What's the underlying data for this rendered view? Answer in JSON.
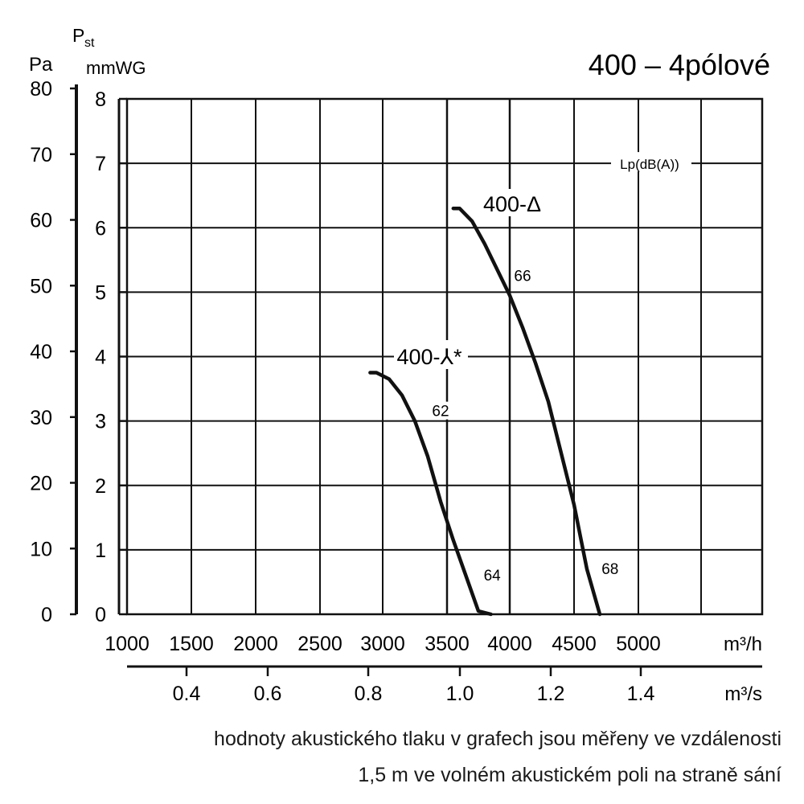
{
  "chart_data": {
    "type": "line",
    "title": "400 – 4pólové",
    "y_axis_left": {
      "label": "Pa",
      "ticks": [
        0,
        10,
        20,
        30,
        40,
        50,
        60,
        70,
        80
      ],
      "ylim": [
        0,
        80
      ]
    },
    "y_axis_inner": {
      "label_main": "P",
      "label_sub": "st",
      "unit": "mmWG",
      "ticks": [
        0,
        1,
        2,
        3,
        4,
        5,
        6,
        7,
        8
      ],
      "ylim": [
        0,
        8
      ]
    },
    "x_axis_top": {
      "unit": "m³/h",
      "ticks": [
        "1000",
        "1500",
        "2000",
        "2500",
        "3000",
        "3500",
        "4000",
        "4500",
        "5000"
      ]
    },
    "x_axis_bottom": {
      "unit": "m³/s",
      "ticks": [
        "0.4",
        "0.6",
        "0.8",
        "1.0",
        "1.2",
        "1.4"
      ]
    },
    "grid": true,
    "legend_text": "Lp(dB(A))",
    "series": [
      {
        "name": "400-Δ",
        "points": [
          [
            3550,
            6.3
          ],
          [
            3600,
            6.3
          ],
          [
            3700,
            6.1
          ],
          [
            3800,
            5.75
          ],
          [
            3900,
            5.35
          ],
          [
            4000,
            4.95
          ],
          [
            4100,
            4.45
          ],
          [
            4200,
            3.9
          ],
          [
            4300,
            3.3
          ],
          [
            4400,
            2.5
          ],
          [
            4500,
            1.7
          ],
          [
            4550,
            1.2
          ],
          [
            4600,
            0.7
          ],
          [
            4700,
            0.0
          ]
        ],
        "sound_labels": [
          {
            "text": "66",
            "x": 4100,
            "y": 5.2
          },
          {
            "text": "68",
            "x": 4780,
            "y": 0.65
          }
        ]
      },
      {
        "name": "400-⅄*",
        "points": [
          [
            2900,
            3.75
          ],
          [
            2950,
            3.75
          ],
          [
            3050,
            3.65
          ],
          [
            3150,
            3.4
          ],
          [
            3250,
            3.0
          ],
          [
            3350,
            2.45
          ],
          [
            3450,
            1.75
          ],
          [
            3550,
            1.15
          ],
          [
            3650,
            0.6
          ],
          [
            3750,
            0.05
          ],
          [
            3850,
            0.0
          ]
        ],
        "sound_labels": [
          {
            "text": "62",
            "x": 3450,
            "y": 3.1
          },
          {
            "text": "64",
            "x": 3860,
            "y": 0.55
          }
        ]
      }
    ]
  },
  "caption_line1": "hodnoty akustického tlaku v grafech jsou měřeny ve vzdálenosti",
  "caption_line2": "1,5 m ve volném akustickém poli na straně sání"
}
